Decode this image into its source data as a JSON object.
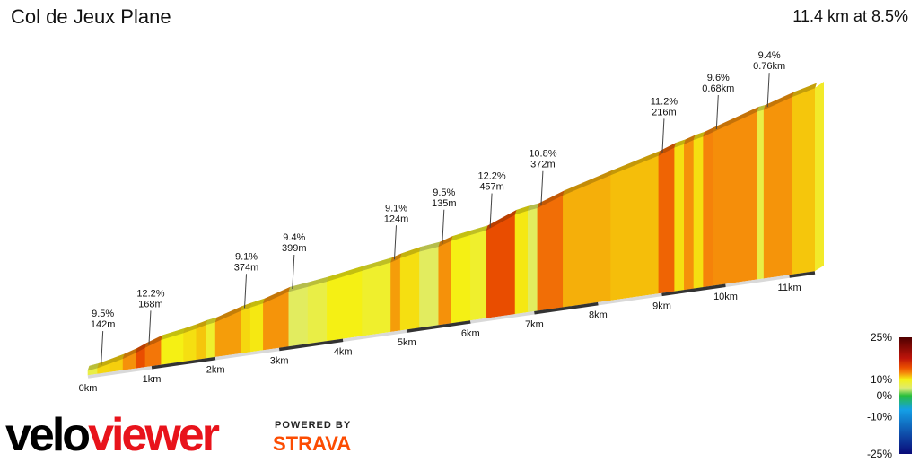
{
  "header": {
    "title": "Col de Jeux Plane",
    "summary": "11.4 km at 8.5%"
  },
  "branding": {
    "logo_part1": "velo",
    "logo_part2": "viewer",
    "powered_by": "POWERED BY",
    "strava": "STRAVA",
    "logo_color": "#e8131b",
    "strava_color": "#fc4c02"
  },
  "chart_data": {
    "type": "area",
    "total_km": 11.4,
    "x_ticks": [
      {
        "km": 0,
        "label": "0km"
      },
      {
        "km": 1,
        "label": "1km"
      },
      {
        "km": 2,
        "label": "2km"
      },
      {
        "km": 3,
        "label": "3km"
      },
      {
        "km": 4,
        "label": "4km"
      },
      {
        "km": 5,
        "label": "5km"
      },
      {
        "km": 6,
        "label": "6km"
      },
      {
        "km": 7,
        "label": "7km"
      },
      {
        "km": 8,
        "label": "8km"
      },
      {
        "km": 9,
        "label": "9km"
      },
      {
        "km": 10,
        "label": "10km"
      },
      {
        "km": 11,
        "label": "11km"
      }
    ],
    "segments": [
      {
        "km": 0.15,
        "grade": 4.0
      },
      {
        "km": 0.35,
        "grade": 6.5
      },
      {
        "km": 0.55,
        "grade": 7.0
      },
      {
        "km": 0.75,
        "grade": 9.5
      },
      {
        "km": 0.9,
        "grade": 12.2
      },
      {
        "km": 1.15,
        "grade": 10.5
      },
      {
        "km": 1.5,
        "grade": 5.0
      },
      {
        "km": 1.7,
        "grade": 6.0
      },
      {
        "km": 1.85,
        "grade": 7.5
      },
      {
        "km": 2.0,
        "grade": 4.5
      },
      {
        "km": 2.4,
        "grade": 9.1
      },
      {
        "km": 2.55,
        "grade": 6.5
      },
      {
        "km": 2.75,
        "grade": 5.5
      },
      {
        "km": 3.15,
        "grade": 9.4
      },
      {
        "km": 3.45,
        "grade": 3.5
      },
      {
        "km": 3.75,
        "grade": 4.0
      },
      {
        "km": 4.3,
        "grade": 5.0
      },
      {
        "km": 4.75,
        "grade": 4.5
      },
      {
        "km": 4.9,
        "grade": 9.1
      },
      {
        "km": 5.2,
        "grade": 6.0
      },
      {
        "km": 5.5,
        "grade": 3.5
      },
      {
        "km": 5.7,
        "grade": 9.5
      },
      {
        "km": 6.0,
        "grade": 5.0
      },
      {
        "km": 6.25,
        "grade": 4.5
      },
      {
        "km": 6.7,
        "grade": 12.2
      },
      {
        "km": 6.9,
        "grade": 5.5
      },
      {
        "km": 7.05,
        "grade": 3.5
      },
      {
        "km": 7.45,
        "grade": 10.8
      },
      {
        "km": 8.2,
        "grade": 8.5
      },
      {
        "km": 8.95,
        "grade": 8.0
      },
      {
        "km": 9.2,
        "grade": 11.2
      },
      {
        "km": 9.35,
        "grade": 6.0
      },
      {
        "km": 9.5,
        "grade": 9.5
      },
      {
        "km": 9.65,
        "grade": 6.0
      },
      {
        "km": 9.8,
        "grade": 10.0
      },
      {
        "km": 10.5,
        "grade": 9.6
      },
      {
        "km": 10.6,
        "grade": 4.0
      },
      {
        "km": 11.05,
        "grade": 9.4
      },
      {
        "km": 11.4,
        "grade": 7.5
      }
    ],
    "annotations": [
      {
        "km": 0.15,
        "grade": "9.5%",
        "length": "142m"
      },
      {
        "km": 0.9,
        "grade": "12.2%",
        "length": "168m"
      },
      {
        "km": 2.4,
        "grade": "9.1%",
        "length": "374m"
      },
      {
        "km": 3.15,
        "grade": "9.4%",
        "length": "399m"
      },
      {
        "km": 4.75,
        "grade": "9.1%",
        "length": "124m"
      },
      {
        "km": 5.5,
        "grade": "9.5%",
        "length": "135m"
      },
      {
        "km": 6.25,
        "grade": "12.2%",
        "length": "457m"
      },
      {
        "km": 7.05,
        "grade": "10.8%",
        "length": "372m"
      },
      {
        "km": 8.95,
        "grade": "11.2%",
        "length": "216m"
      },
      {
        "km": 9.8,
        "grade": "9.6%",
        "length": "0.68km"
      },
      {
        "km": 10.6,
        "grade": "9.4%",
        "length": "0.76km"
      }
    ],
    "legend": {
      "position": "bottom-right",
      "max": 25,
      "min": -25,
      "labels": [
        {
          "value": 25,
          "label": "25%"
        },
        {
          "value": 10,
          "label": "10%"
        },
        {
          "value": 0,
          "label": "0%"
        },
        {
          "value": -10,
          "label": "-10%"
        },
        {
          "value": -25,
          "label": "-25%"
        }
      ]
    }
  }
}
